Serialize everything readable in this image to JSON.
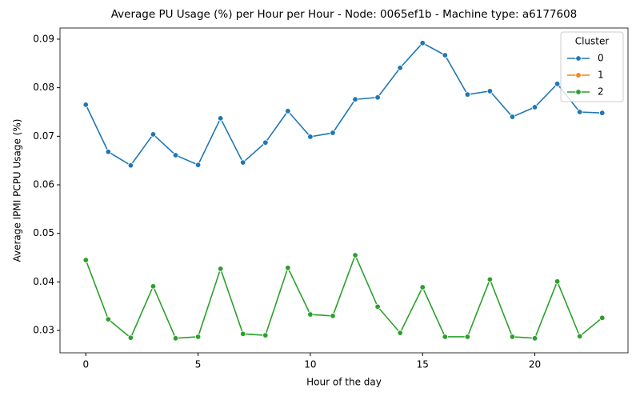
{
  "chart_data": {
    "type": "line",
    "title": "Average PU Usage (%) per Hour per Hour - Node: 0065ef1b - Machine type: a6177608",
    "xlabel": "Hour of the day",
    "ylabel": "Average IPMI PCPU Usage (%)",
    "x": [
      0,
      1,
      2,
      3,
      4,
      5,
      6,
      7,
      8,
      9,
      10,
      11,
      12,
      13,
      14,
      15,
      16,
      17,
      18,
      19,
      20,
      21,
      22,
      23
    ],
    "series": [
      {
        "name": "0",
        "color": "#1f77b4",
        "values": [
          0.0765,
          0.0668,
          0.064,
          0.0704,
          0.0661,
          0.0641,
          0.0737,
          0.0646,
          0.0687,
          0.0752,
          0.0699,
          0.0707,
          0.0776,
          0.078,
          0.0841,
          0.0892,
          0.0867,
          0.0786,
          0.0793,
          0.074,
          0.076,
          0.0808,
          0.075,
          0.0748
        ]
      },
      {
        "name": "1",
        "color": "#ff7f0e",
        "values": [
          null,
          null,
          null,
          null,
          null,
          null,
          null,
          null,
          null,
          null,
          null,
          null,
          null,
          null,
          null,
          null,
          null,
          null,
          null,
          null,
          null,
          null,
          null,
          null
        ]
      },
      {
        "name": "2",
        "color": "#2ca02c",
        "values": [
          0.0445,
          0.0323,
          0.0285,
          0.0391,
          0.0284,
          0.0287,
          0.0427,
          0.0293,
          0.029,
          0.0429,
          0.0333,
          0.033,
          0.0455,
          0.0349,
          0.0295,
          0.0389,
          0.0287,
          0.0287,
          0.0405,
          0.0287,
          0.0284,
          0.0401,
          0.0288,
          0.0326
        ]
      }
    ],
    "legend_title": "Cluster",
    "legend": "upper right",
    "xlim": [
      -1.15,
      24.15
    ],
    "xticks": [
      0,
      5,
      10,
      15,
      20
    ],
    "ylim": [
      0.0254,
      0.0923
    ],
    "yticks": [
      {
        "value": 0.03,
        "label": "0.03"
      },
      {
        "value": 0.04,
        "label": "0.04"
      },
      {
        "value": 0.05,
        "label": "0.05"
      },
      {
        "value": 0.06,
        "label": "0.06"
      },
      {
        "value": 0.07,
        "label": "0.07"
      },
      {
        "value": 0.08,
        "label": "0.08"
      },
      {
        "value": 0.09,
        "label": "0.09"
      }
    ]
  }
}
